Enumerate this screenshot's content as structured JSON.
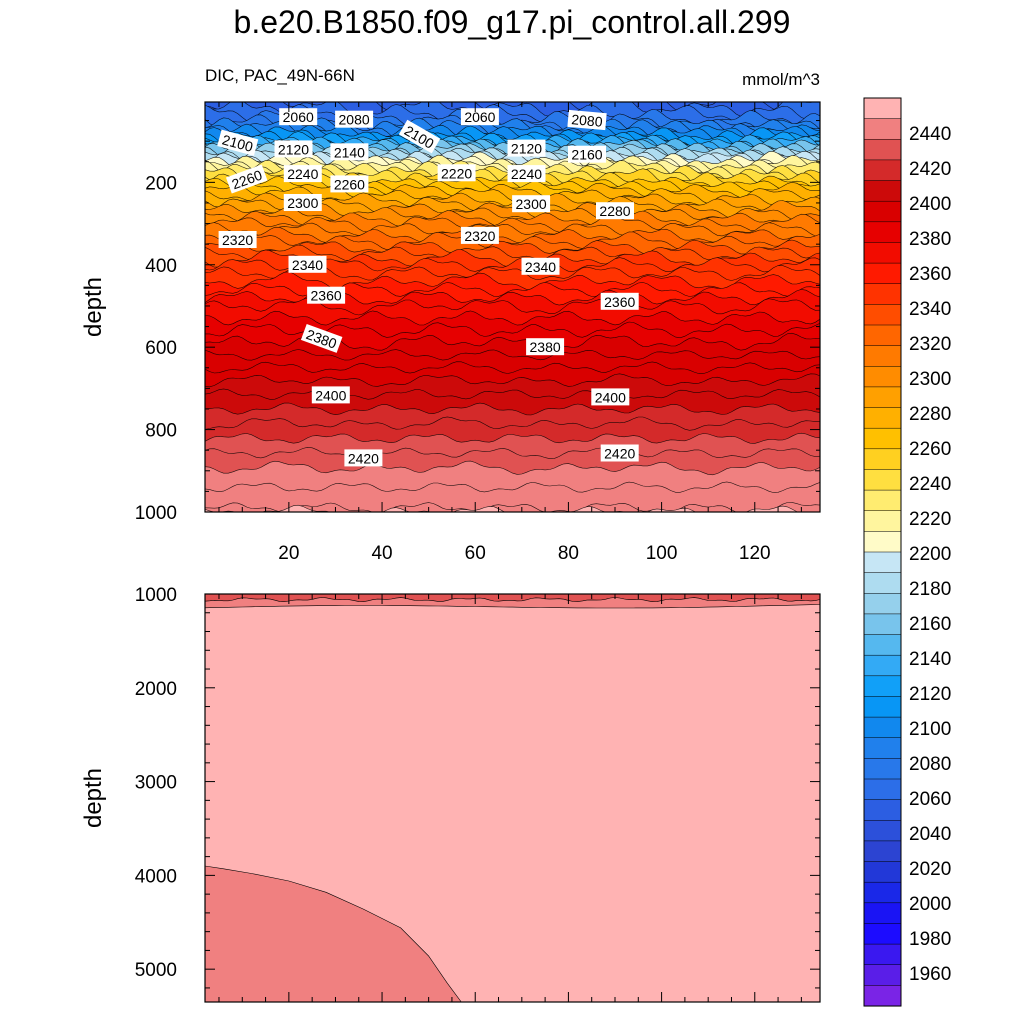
{
  "chart_data": [
    {
      "type": "contour",
      "panel": "upper",
      "title": "b.e20.B1850.f09_g17.pi_control.all.299",
      "left_subtitle": "DIC, PAC_49N-66N",
      "right_subtitle": "mmol/m^3",
      "xlabel": "",
      "ylabel": "depth",
      "xlim": [
        2,
        134
      ],
      "ylim": [
        1000,
        5
      ],
      "x_ticks": [
        20,
        40,
        60,
        80,
        100,
        120
      ],
      "y_ticks": [
        200,
        400,
        600,
        800,
        1000
      ],
      "y_reversed": true,
      "profile": [
        [
          5,
          2060
        ],
        [
          60,
          2080
        ],
        [
          100,
          2120
        ],
        [
          150,
          2200
        ],
        [
          175,
          2230
        ],
        [
          220,
          2270
        ],
        [
          300,
          2305
        ],
        [
          400,
          2340
        ],
        [
          500,
          2365
        ],
        [
          600,
          2382
        ],
        [
          700,
          2398
        ],
        [
          800,
          2412
        ],
        [
          900,
          2426
        ],
        [
          980,
          2434
        ],
        [
          1000,
          2436
        ]
      ],
      "contour_labels": [
        {
          "text": "2060",
          "x": 22,
          "y": 42,
          "rot": 0
        },
        {
          "text": "2080",
          "x": 34,
          "y": 48,
          "rot": 0
        },
        {
          "text": "2100",
          "x": 9,
          "y": 105,
          "rot": 15
        },
        {
          "text": "2100",
          "x": 48,
          "y": 90,
          "rot": 30
        },
        {
          "text": "2060",
          "x": 61,
          "y": 42,
          "rot": 0
        },
        {
          "text": "2080",
          "x": 84,
          "y": 50,
          "rot": 5
        },
        {
          "text": "2120",
          "x": 21,
          "y": 120,
          "rot": 0
        },
        {
          "text": "2140",
          "x": 33,
          "y": 127,
          "rot": 0
        },
        {
          "text": "2120",
          "x": 71,
          "y": 118,
          "rot": 0
        },
        {
          "text": "2160",
          "x": 84,
          "y": 133,
          "rot": 0
        },
        {
          "text": "2260",
          "x": 11,
          "y": 193,
          "rot": -20
        },
        {
          "text": "2240",
          "x": 23,
          "y": 180,
          "rot": 0
        },
        {
          "text": "2260",
          "x": 33,
          "y": 205,
          "rot": 0
        },
        {
          "text": "2220",
          "x": 56,
          "y": 178,
          "rot": 0
        },
        {
          "text": "2240",
          "x": 71,
          "y": 180,
          "rot": 0
        },
        {
          "text": "2300",
          "x": 23,
          "y": 250,
          "rot": 0
        },
        {
          "text": "2280",
          "x": 90,
          "y": 270,
          "rot": 0
        },
        {
          "text": "2300",
          "x": 72,
          "y": 253,
          "rot": 0
        },
        {
          "text": "2320",
          "x": 9,
          "y": 340,
          "rot": 0
        },
        {
          "text": "2320",
          "x": 61,
          "y": 330,
          "rot": 0
        },
        {
          "text": "2340",
          "x": 24,
          "y": 400,
          "rot": 0
        },
        {
          "text": "2340",
          "x": 74,
          "y": 405,
          "rot": 0
        },
        {
          "text": "2360",
          "x": 28,
          "y": 475,
          "rot": 0
        },
        {
          "text": "2360",
          "x": 91,
          "y": 490,
          "rot": 0
        },
        {
          "text": "2380",
          "x": 27,
          "y": 580,
          "rot": 20
        },
        {
          "text": "2380",
          "x": 75,
          "y": 600,
          "rot": 0
        },
        {
          "text": "2400",
          "x": 29,
          "y": 717,
          "rot": 0
        },
        {
          "text": "2400",
          "x": 89,
          "y": 722,
          "rot": 0
        },
        {
          "text": "2420",
          "x": 36,
          "y": 870,
          "rot": 0
        },
        {
          "text": "2420",
          "x": 91,
          "y": 858,
          "rot": 0
        }
      ]
    },
    {
      "type": "contour",
      "panel": "lower",
      "xlabel": "",
      "ylabel": "depth",
      "xlim": [
        2,
        134
      ],
      "ylim": [
        5350,
        1000
      ],
      "y_ticks": [
        1000,
        2000,
        3000,
        4000,
        5000
      ],
      "y_reversed": true,
      "regions": [
        {
          "level_range": "2436-2442",
          "description": "band near 1000-1150 m"
        },
        {
          "level_range": ">2446",
          "description": "bulk of the deep ocean"
        },
        {
          "level_range": "2442-2446",
          "description": "deep western basin below ~3900 m"
        }
      ]
    }
  ],
  "colorbar": {
    "labels": [
      "2440",
      "2420",
      "2400",
      "2380",
      "2360",
      "2340",
      "2320",
      "2300",
      "2280",
      "2260",
      "2240",
      "2220",
      "2200",
      "2180",
      "2160",
      "2140",
      "2120",
      "2100",
      "2080",
      "2060",
      "2040",
      "2020",
      "2000",
      "1980",
      "1960"
    ],
    "colors": [
      "#ffb3b3",
      "#f08080",
      "#e05252",
      "#d42a2a",
      "#cc0a0a",
      "#d90000",
      "#e60000",
      "#f20c00",
      "#ff1a00",
      "#ff3300",
      "#ff4d00",
      "#ff6600",
      "#ff7a00",
      "#ff8c00",
      "#ffa000",
      "#ffb000",
      "#ffc000",
      "#ffd020",
      "#ffdf40",
      "#ffec70",
      "#fff59e",
      "#fffbc8",
      "#c6e6f5",
      "#aedcf0",
      "#95d0ec",
      "#78c4ec",
      "#55b8ef",
      "#33aaf5",
      "#11a0f8",
      "#0896f5",
      "#1188ee",
      "#2080ec",
      "#2878ea",
      "#2c6ee8",
      "#2c5ee2",
      "#2c50da",
      "#2c44d2",
      "#2238d8",
      "#1a28e8",
      "#1a14f4",
      "#1c0cff",
      "#3a18f0",
      "#5a1ee8",
      "#7a24e6"
    ]
  }
}
